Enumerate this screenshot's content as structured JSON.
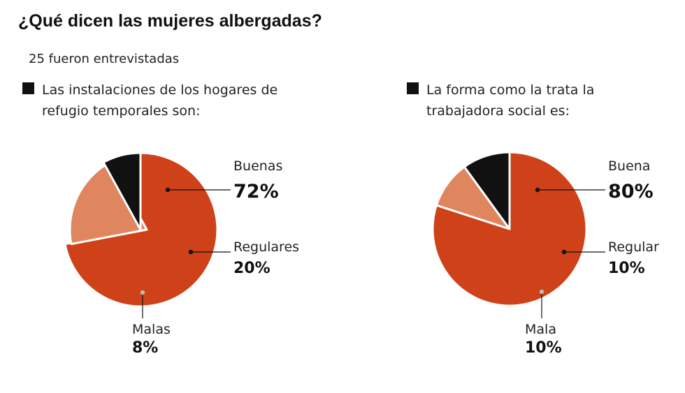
{
  "title": "¿Qué dicen las mujeres albergadas?",
  "subtitle": "25 fueron entrevistadas",
  "colors": {
    "dark_red": "#CE4119",
    "light_orange": "#E0865E",
    "black": "#111111"
  },
  "panels": [
    {
      "question_lines": [
        "Las instalaciones de los hogares de",
        "refugio temporales son:"
      ]
    },
    {
      "question_lines": [
        "La forma como la trata la",
        "trabajadora social es:"
      ]
    }
  ],
  "chart_data": [
    {
      "type": "pie",
      "title": "Las instalaciones de los hogares de refugio temporales son:",
      "slices": [
        {
          "label": "Buenas",
          "value": 72,
          "display": "72%",
          "color": "#CE4119"
        },
        {
          "label": "Regulares",
          "value": 20,
          "display": "20%",
          "color": "#E0865E"
        },
        {
          "label": "Malas",
          "value": 8,
          "display": "8%",
          "color": "#111111"
        }
      ]
    },
    {
      "type": "pie",
      "title": "La forma como la trata la trabajadora social es:",
      "slices": [
        {
          "label": "Buena",
          "value": 80,
          "display": "80%",
          "color": "#CE4119"
        },
        {
          "label": "Regular",
          "value": 10,
          "display": "10%",
          "color": "#E0865E"
        },
        {
          "label": "Mala",
          "value": 10,
          "display": "10%",
          "color": "#111111"
        }
      ]
    }
  ]
}
